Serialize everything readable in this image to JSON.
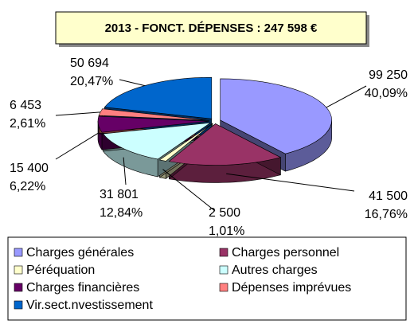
{
  "chart_data": {
    "type": "pie",
    "title": "2013 - FONCT. DÉPENSES  : 247 598 €",
    "categories": [
      "Charges générales",
      "Charges personnel",
      "Péréquation",
      "Autres charges",
      "Charges financières",
      "Dépenses imprévues",
      "Vir.sect.nvestissement"
    ],
    "values": [
      99250,
      41500,
      2500,
      31801,
      15400,
      6453,
      50694
    ],
    "value_labels": [
      "99 250",
      "41 500",
      "2 500",
      "31 801",
      "15 400",
      "6 453",
      "50 694"
    ],
    "percentages": [
      40.09,
      16.76,
      1.01,
      12.84,
      6.22,
      2.61,
      20.47
    ],
    "percentage_labels": [
      "40,09%",
      "16,76%",
      "1,01%",
      "12,84%",
      "6,22%",
      "2,61%",
      "20,47%"
    ],
    "colors": [
      "#9999ff",
      "#993366",
      "#ffffcc",
      "#ccffff",
      "#660066",
      "#ff8080",
      "#0066cc"
    ],
    "legend": "bottom"
  }
}
